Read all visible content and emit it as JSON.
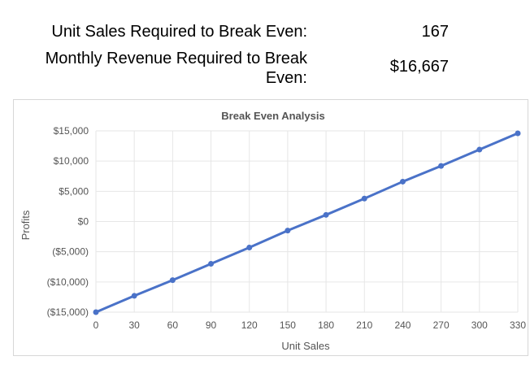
{
  "summary": {
    "unit_sales_label": "Unit Sales Required to Break Even:",
    "unit_sales_value": "167",
    "revenue_label_line1": "Monthly Revenue Required to Break",
    "revenue_label_line2": "Even:",
    "revenue_value": "$16,667"
  },
  "chart_data": {
    "type": "line",
    "title": "Break Even Analysis",
    "xlabel": "Unit Sales",
    "ylabel": "Profits",
    "x": [
      0,
      30,
      60,
      90,
      120,
      150,
      180,
      210,
      240,
      270,
      300,
      330
    ],
    "series": [
      {
        "values": [
          -15000,
          -12300,
          -9700,
          -7000,
          -4300,
          -1500,
          1100,
          3800,
          6600,
          9200,
          11900,
          14600
        ]
      }
    ],
    "xlim": [
      0,
      330
    ],
    "ylim": [
      -15000,
      15000
    ],
    "x_ticks": [
      "0",
      "30",
      "60",
      "90",
      "120",
      "150",
      "180",
      "210",
      "240",
      "270",
      "300",
      "330"
    ],
    "y_ticks": [
      "($15,000)",
      "($10,000)",
      "($5,000)",
      "$0",
      "$5,000",
      "$10,000",
      "$15,000"
    ],
    "y_tick_values": [
      -15000,
      -10000,
      -5000,
      0,
      5000,
      10000,
      15000
    ],
    "grid": true,
    "line_color": "#4a72c8"
  }
}
